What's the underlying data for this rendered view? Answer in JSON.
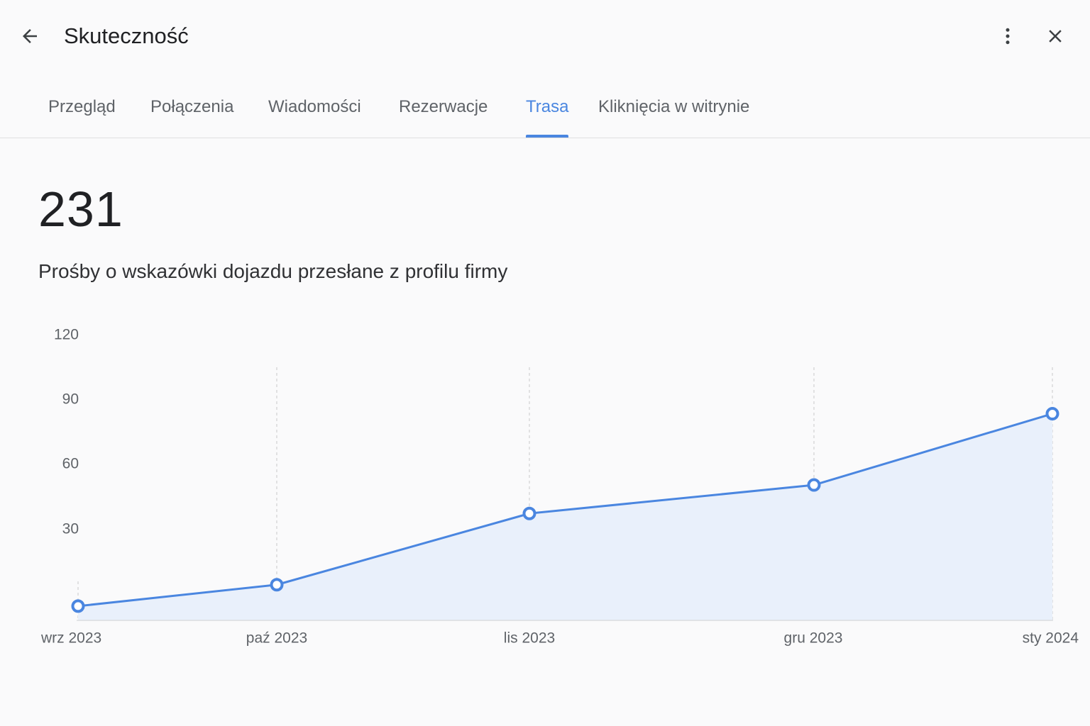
{
  "header": {
    "title": "Skuteczność",
    "back_icon": "arrow-back-icon",
    "more_icon": "more-vert-icon",
    "close_icon": "close-icon"
  },
  "tabs": [
    {
      "label": "Przegląd",
      "active": false
    },
    {
      "label": "Połączenia",
      "active": false
    },
    {
      "label": "Wiadomości",
      "active": false
    },
    {
      "label": "Rezerwacje",
      "active": false
    },
    {
      "label": "Trasa",
      "active": true
    },
    {
      "label": "Kliknięcia w witrynie",
      "active": false
    }
  ],
  "metric": {
    "value": "231",
    "description": "Prośby o wskazówki dojazdu przesłane z profilu firmy"
  },
  "colors": {
    "accent": "#4a86e0",
    "area_fill": "#e9f0fb",
    "grid": "#c8c8c8"
  },
  "chart_data": {
    "type": "area",
    "categories": [
      "wrz 2023",
      "paź 2023",
      "lis 2023",
      "gru 2023",
      "sty 2024"
    ],
    "values": [
      6,
      15,
      45,
      57,
      87
    ],
    "yticks": [
      "120",
      "90",
      "60",
      "30"
    ],
    "ylim": [
      0,
      120
    ],
    "grid": "vertical-dashed",
    "xlabel": "",
    "ylabel": ""
  }
}
